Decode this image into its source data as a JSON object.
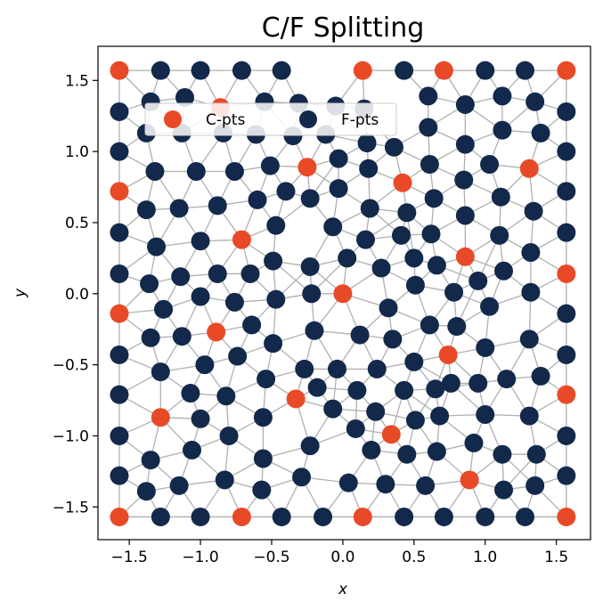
{
  "chart_data": {
    "type": "scatter",
    "title": "C/F Splitting",
    "xlabel": "x",
    "ylabel": "y",
    "xlim": [
      -1.72,
      1.74
    ],
    "ylim": [
      -1.73,
      1.74
    ],
    "xticks": [
      -1.5,
      -1.0,
      -0.5,
      0.0,
      0.5,
      1.0,
      1.5
    ],
    "yticks": [
      -1.5,
      -1.0,
      -0.5,
      0.0,
      0.5,
      1.0,
      1.5
    ],
    "xtick_labels": [
      "−1.5",
      "−1.0",
      "−0.5",
      "0.0",
      "0.5",
      "1.0",
      "1.5"
    ],
    "ytick_labels": [
      "−1.5",
      "−1.0",
      "−0.5",
      "0.0",
      "0.5",
      "1.0",
      "1.5"
    ],
    "grid": false,
    "legend": {
      "position": "upper-left",
      "ncol": 2,
      "entries": [
        "C-pts",
        "F-pts"
      ]
    },
    "colors": {
      "c_pts": "#e84a27",
      "f_pts": "#13294b",
      "edges": "#b0b0b0"
    },
    "series": [
      {
        "name": "C-pts",
        "color": "#e84a27",
        "points": [
          [
            -1.57,
            1.57
          ],
          [
            0.14,
            1.57
          ],
          [
            0.71,
            1.57
          ],
          [
            1.57,
            1.57
          ],
          [
            -0.86,
            1.31
          ],
          [
            -0.25,
            0.89
          ],
          [
            0.42,
            0.78
          ],
          [
            1.31,
            0.88
          ],
          [
            -1.57,
            0.72
          ],
          [
            -0.71,
            0.38
          ],
          [
            0.0,
            0.0
          ],
          [
            0.86,
            0.26
          ],
          [
            1.57,
            0.14
          ],
          [
            -1.57,
            -0.14
          ],
          [
            -0.89,
            -0.27
          ],
          [
            0.74,
            -0.43
          ],
          [
            -0.33,
            -0.74
          ],
          [
            1.57,
            -0.71
          ],
          [
            -1.28,
            -0.87
          ],
          [
            0.34,
            -0.99
          ],
          [
            0.89,
            -1.31
          ],
          [
            -1.57,
            -1.57
          ],
          [
            -0.71,
            -1.57
          ],
          [
            0.14,
            -1.57
          ],
          [
            1.57,
            -1.57
          ]
        ]
      },
      {
        "name": "F-pts",
        "color": "#13294b",
        "points": [
          [
            -1.28,
            1.57
          ],
          [
            -1.0,
            1.57
          ],
          [
            -0.71,
            1.57
          ],
          [
            -0.43,
            1.57
          ],
          [
            0.43,
            1.57
          ],
          [
            1.0,
            1.57
          ],
          [
            1.28,
            1.57
          ],
          [
            -1.57,
            1.28
          ],
          [
            -1.35,
            1.35
          ],
          [
            -1.11,
            1.38
          ],
          [
            -0.55,
            1.35
          ],
          [
            -0.31,
            1.34
          ],
          [
            -0.05,
            1.32
          ],
          [
            0.15,
            1.3
          ],
          [
            0.6,
            1.39
          ],
          [
            0.86,
            1.33
          ],
          [
            1.12,
            1.39
          ],
          [
            1.35,
            1.35
          ],
          [
            1.57,
            1.28
          ],
          [
            -1.38,
            1.13
          ],
          [
            -1.13,
            1.13
          ],
          [
            -0.84,
            1.13
          ],
          [
            -0.61,
            1.12
          ],
          [
            -0.35,
            1.11
          ],
          [
            -0.12,
            1.12
          ],
          [
            0.17,
            1.06
          ],
          [
            0.36,
            1.03
          ],
          [
            0.6,
            1.17
          ],
          [
            0.86,
            1.05
          ],
          [
            1.12,
            1.15
          ],
          [
            1.39,
            1.13
          ],
          [
            -1.57,
            1.0
          ],
          [
            -1.32,
            0.86
          ],
          [
            -1.03,
            0.86
          ],
          [
            -0.76,
            0.86
          ],
          [
            -0.51,
            0.9
          ],
          [
            -0.03,
            0.95
          ],
          [
            0.18,
            0.88
          ],
          [
            0.61,
            0.91
          ],
          [
            0.85,
            0.8
          ],
          [
            1.03,
            0.91
          ],
          [
            1.57,
            1.0
          ],
          [
            -1.38,
            0.59
          ],
          [
            -1.15,
            0.6
          ],
          [
            -0.88,
            0.62
          ],
          [
            -0.6,
            0.66
          ],
          [
            -0.4,
            0.72
          ],
          [
            -0.23,
            0.67
          ],
          [
            -0.03,
            0.74
          ],
          [
            0.19,
            0.6
          ],
          [
            0.45,
            0.57
          ],
          [
            0.64,
            0.67
          ],
          [
            0.86,
            0.55
          ],
          [
            1.11,
            0.68
          ],
          [
            1.34,
            0.58
          ],
          [
            1.57,
            0.72
          ],
          [
            -1.57,
            0.43
          ],
          [
            -1.31,
            0.33
          ],
          [
            -1.0,
            0.37
          ],
          [
            -0.47,
            0.48
          ],
          [
            -0.07,
            0.47
          ],
          [
            0.16,
            0.38
          ],
          [
            0.41,
            0.41
          ],
          [
            0.62,
            0.42
          ],
          [
            1.1,
            0.41
          ],
          [
            1.32,
            0.29
          ],
          [
            1.57,
            0.43
          ],
          [
            -1.57,
            0.14
          ],
          [
            -1.36,
            0.07
          ],
          [
            -1.14,
            0.12
          ],
          [
            -0.88,
            0.14
          ],
          [
            -0.65,
            0.14
          ],
          [
            -0.49,
            0.23
          ],
          [
            -0.23,
            0.19
          ],
          [
            0.03,
            0.25
          ],
          [
            0.27,
            0.18
          ],
          [
            0.5,
            0.25
          ],
          [
            0.66,
            0.2
          ],
          [
            0.95,
            0.09
          ],
          [
            1.13,
            0.16
          ],
          [
            -1.26,
            -0.11
          ],
          [
            -1.0,
            -0.02
          ],
          [
            -0.76,
            -0.06
          ],
          [
            -0.47,
            -0.04
          ],
          [
            -0.22,
            0.0
          ],
          [
            0.32,
            -0.1
          ],
          [
            0.51,
            0.06
          ],
          [
            0.78,
            0.01
          ],
          [
            1.03,
            -0.09
          ],
          [
            1.32,
            0.01
          ],
          [
            1.57,
            -0.14
          ],
          [
            -1.35,
            -0.31
          ],
          [
            -1.13,
            -0.3
          ],
          [
            -0.64,
            -0.22
          ],
          [
            -0.49,
            -0.35
          ],
          [
            -0.2,
            -0.26
          ],
          [
            0.12,
            -0.29
          ],
          [
            0.35,
            -0.32
          ],
          [
            0.61,
            -0.22
          ],
          [
            0.8,
            -0.23
          ],
          [
            1.0,
            -0.38
          ],
          [
            1.31,
            -0.32
          ],
          [
            -1.57,
            -0.43
          ],
          [
            -1.28,
            -0.55
          ],
          [
            -0.97,
            -0.5
          ],
          [
            -0.74,
            -0.44
          ],
          [
            -0.54,
            -0.6
          ],
          [
            -0.27,
            -0.53
          ],
          [
            -0.04,
            -0.53
          ],
          [
            0.24,
            -0.53
          ],
          [
            0.5,
            -0.48
          ],
          [
            0.95,
            -0.63
          ],
          [
            1.15,
            -0.6
          ],
          [
            1.39,
            -0.58
          ],
          [
            1.57,
            -0.43
          ],
          [
            -1.57,
            -0.71
          ],
          [
            -1.07,
            -0.7
          ],
          [
            -0.82,
            -0.72
          ],
          [
            -0.18,
            -0.66
          ],
          [
            0.1,
            -0.68
          ],
          [
            0.43,
            -0.68
          ],
          [
            0.65,
            -0.67
          ],
          [
            0.76,
            -0.63
          ],
          [
            -1.57,
            -1.0
          ],
          [
            -1.0,
            -0.88
          ],
          [
            -0.8,
            -1.0
          ],
          [
            -0.56,
            -0.87
          ],
          [
            -0.07,
            -0.81
          ],
          [
            0.23,
            -0.83
          ],
          [
            0.51,
            -0.89
          ],
          [
            0.68,
            -0.86
          ],
          [
            1.0,
            -0.85
          ],
          [
            1.31,
            -0.86
          ],
          [
            -1.35,
            -1.17
          ],
          [
            -1.06,
            -1.1
          ],
          [
            -0.56,
            -1.16
          ],
          [
            -0.23,
            -1.07
          ],
          [
            0.09,
            -0.95
          ],
          [
            0.2,
            -1.1
          ],
          [
            0.45,
            -1.13
          ],
          [
            0.66,
            -1.11
          ],
          [
            0.92,
            -1.05
          ],
          [
            1.12,
            -1.13
          ],
          [
            1.36,
            -1.13
          ],
          [
            1.57,
            -1.0
          ],
          [
            -1.57,
            -1.28
          ],
          [
            -1.38,
            -1.39
          ],
          [
            -1.15,
            -1.35
          ],
          [
            -0.83,
            -1.31
          ],
          [
            -0.57,
            -1.38
          ],
          [
            -0.29,
            -1.29
          ],
          [
            0.04,
            -1.33
          ],
          [
            0.3,
            -1.34
          ],
          [
            0.58,
            -1.35
          ],
          [
            1.13,
            -1.38
          ],
          [
            1.35,
            -1.35
          ],
          [
            1.57,
            -1.28
          ],
          [
            -1.28,
            -1.57
          ],
          [
            -1.0,
            -1.57
          ],
          [
            -0.43,
            -1.57
          ],
          [
            -0.14,
            -1.57
          ],
          [
            0.43,
            -1.57
          ],
          [
            0.71,
            -1.57
          ],
          [
            1.0,
            -1.57
          ],
          [
            1.28,
            -1.57
          ]
        ]
      }
    ]
  }
}
